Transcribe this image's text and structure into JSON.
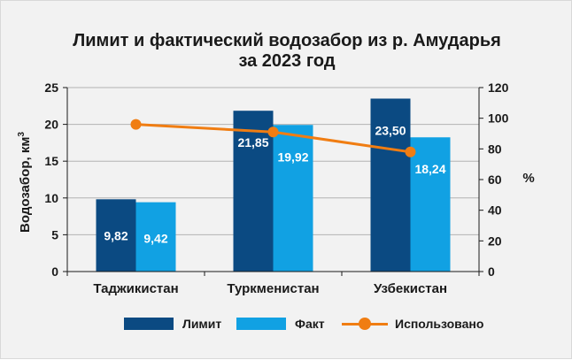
{
  "colors": {
    "limit": "#0b4a82",
    "fact": "#11a1e3",
    "used": "#f07d12",
    "axis": "#1a1a1a",
    "grid": "#b3b3b3",
    "label": "#ffffff"
  },
  "chart_data": {
    "type": "bar",
    "title_lines": [
      "Лимит и фактический водозабор из р. Амударья",
      "за 2023 год"
    ],
    "ylabel_left": "Водозабор, км",
    "ylabel_left_sup": "3",
    "ylabel_right": "%",
    "categories": [
      "Таджикистан",
      "Туркменистан",
      "Узбекистан"
    ],
    "ylim_left": [
      0,
      25
    ],
    "yticks_left": [
      "0",
      "5",
      "10",
      "15",
      "20",
      "25"
    ],
    "ylim_right": [
      0,
      120
    ],
    "yticks_right": [
      "0",
      "20",
      "40",
      "60",
      "80",
      "100",
      "120"
    ],
    "grid": true,
    "legend_position": "bottom",
    "series": [
      {
        "name": "Лимит",
        "type": "bar",
        "axis": "left",
        "values": [
          9.82,
          21.85,
          23.5
        ],
        "labels": [
          "9,82",
          "21,85",
          "23,50"
        ]
      },
      {
        "name": "Факт",
        "type": "bar",
        "axis": "left",
        "values": [
          9.42,
          19.92,
          18.24
        ],
        "labels": [
          "9,42",
          "19,92",
          "18,24"
        ]
      },
      {
        "name": "Использовано",
        "type": "line",
        "axis": "right",
        "values": [
          96,
          91,
          78
        ]
      }
    ]
  }
}
